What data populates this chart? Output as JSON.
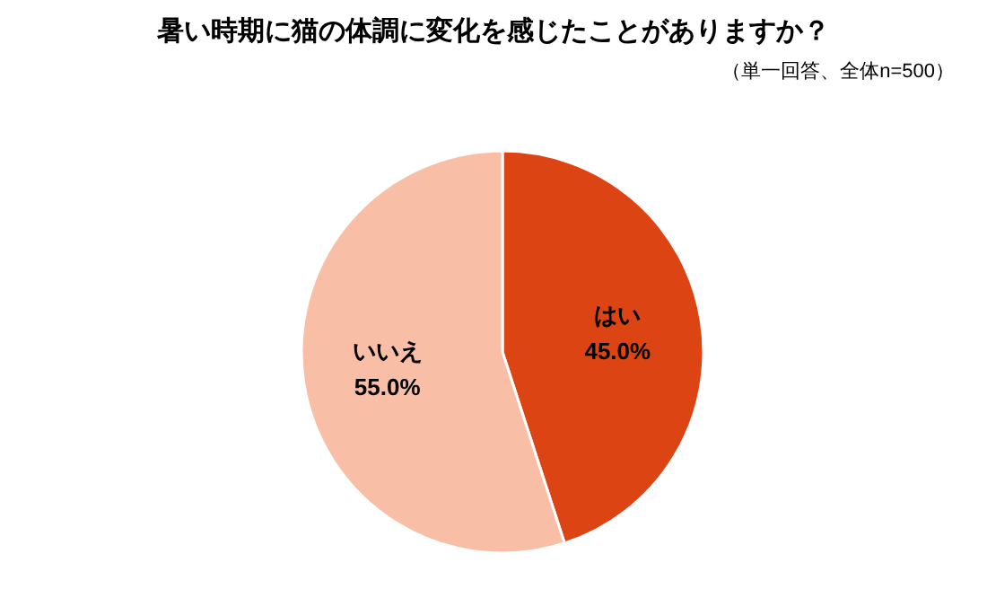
{
  "chart_data": {
    "type": "pie",
    "title": "暑い時期に猫の体調に変化を感じたことがありますか？",
    "subtitle": "（単一回答、全体n=500）",
    "categories": [
      "はい",
      "いいえ"
    ],
    "values": [
      45.0,
      55.0
    ],
    "colors": [
      "#dc4414",
      "#f8bfa6"
    ],
    "value_labels": [
      "45.0%",
      "55.0%"
    ],
    "legend": false
  }
}
